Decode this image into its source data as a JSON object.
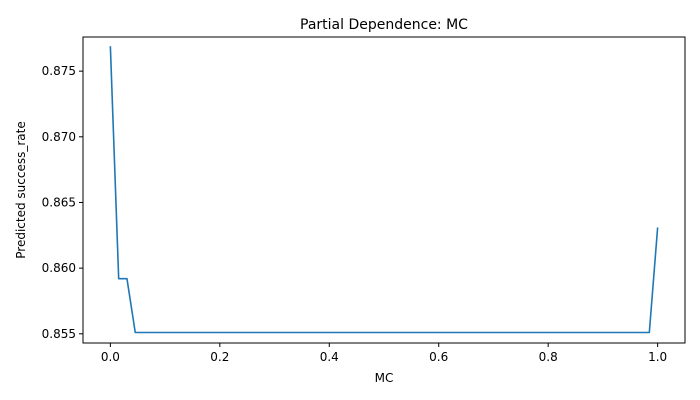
{
  "chart_data": {
    "type": "line",
    "title": "Partial Dependence: MC",
    "xlabel": "MC",
    "ylabel": "Predicted success_rate",
    "xlim": [
      -0.05,
      1.05
    ],
    "ylim": [
      0.8543,
      0.8776
    ],
    "xticks": [
      0.0,
      0.2,
      0.4,
      0.6,
      0.8,
      1.0
    ],
    "xtick_labels": [
      "0.0",
      "0.2",
      "0.4",
      "0.6",
      "0.8",
      "1.0"
    ],
    "yticks": [
      0.855,
      0.86,
      0.865,
      0.87,
      0.875
    ],
    "ytick_labels": [
      "0.855",
      "0.860",
      "0.865",
      "0.870",
      "0.875"
    ],
    "grid": false,
    "series": [
      {
        "color": "#1f77b4",
        "x": [
          0.0,
          0.0152,
          0.0303,
          0.0455,
          0.0606,
          0.5,
          0.9394,
          0.9545,
          0.9697,
          0.9848,
          1.0
        ],
        "y": [
          0.8769,
          0.8592,
          0.8592,
          0.8551,
          0.8551,
          0.8551,
          0.8551,
          0.8551,
          0.8551,
          0.8551,
          0.8631
        ]
      }
    ]
  }
}
